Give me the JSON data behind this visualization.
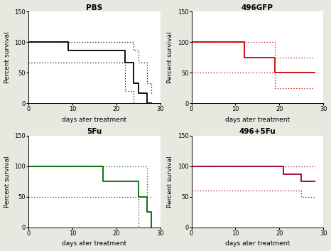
{
  "panels": [
    {
      "title": "PBS",
      "color": "#000000",
      "solid": {
        "x": [
          0,
          9,
          22,
          24,
          25,
          27,
          28
        ],
        "y": [
          100,
          87,
          67,
          33,
          17,
          0,
          0
        ]
      },
      "upper_ci": {
        "x": [
          0,
          22,
          24,
          25,
          27,
          28
        ],
        "y": [
          100,
          100,
          87,
          67,
          33,
          17
        ]
      },
      "lower_ci": {
        "x": [
          0,
          9,
          22,
          24,
          25,
          27,
          28
        ],
        "y": [
          67,
          67,
          20,
          0,
          0,
          0,
          0
        ]
      }
    },
    {
      "title": "496GFP",
      "color": "#cc0000",
      "solid": {
        "x": [
          0,
          12,
          19,
          28
        ],
        "y": [
          100,
          75,
          50,
          50
        ]
      },
      "upper_ci": {
        "x": [
          0,
          12,
          19,
          28
        ],
        "y": [
          100,
          100,
          75,
          75
        ]
      },
      "lower_ci": {
        "x": [
          0,
          12,
          19,
          28
        ],
        "y": [
          50,
          50,
          25,
          25
        ]
      }
    },
    {
      "title": "5Fu",
      "color": "#006600",
      "solid": {
        "x": [
          0,
          17,
          25,
          27,
          28
        ],
        "y": [
          100,
          75,
          50,
          25,
          0
        ]
      },
      "upper_ci": {
        "x": [
          0,
          17,
          25,
          27,
          28
        ],
        "y": [
          100,
          100,
          100,
          50,
          50
        ]
      },
      "lower_ci": {
        "x": [
          0,
          17,
          25,
          27,
          28
        ],
        "y": [
          50,
          50,
          0,
          0,
          0
        ]
      }
    },
    {
      "title": "496+5Fu",
      "color": "#990033",
      "solid": {
        "x": [
          0,
          21,
          25,
          28
        ],
        "y": [
          100,
          87,
          75,
          75
        ]
      },
      "upper_ci": {
        "x": [
          0,
          21,
          25,
          28
        ],
        "y": [
          100,
          100,
          100,
          100
        ]
      },
      "lower_ci": {
        "x": [
          0,
          21,
          25,
          28
        ],
        "y": [
          60,
          60,
          50,
          50
        ]
      }
    }
  ],
  "xlim": [
    0,
    30
  ],
  "ylim": [
    0,
    150
  ],
  "yticks": [
    0,
    50,
    100,
    150
  ],
  "xticks": [
    0,
    10,
    20,
    30
  ],
  "xlabel": "days ater treatment",
  "ylabel": "Percent survival",
  "bg_color": "#ffffff",
  "fig_bg": "#e8e8e0"
}
